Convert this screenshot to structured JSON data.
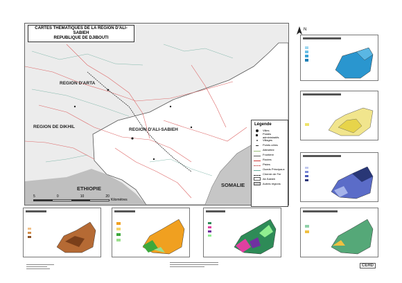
{
  "title": {
    "line1": "CARTES THEMATIQUES DE LA REGION D'ALI-SABIEH",
    "line2": "REPUBLIQUE DE DJIBOUTI"
  },
  "map_labels": {
    "arta": "REGION D'ARTA",
    "dikhil": "REGION DE DIKHIL",
    "ali_sabieh": "REGION D'ALI-SABIEH",
    "ethiopie": "ETHIOPIE",
    "somalie": "SOMALIE"
  },
  "legend": {
    "title": "Légende",
    "items": [
      "Villes",
      "Postes administratifs",
      "Villages",
      "Points côtes",
      "Altimétrie",
      "Frontière",
      "Routes",
      "Pistes",
      "Oueds Principaux",
      "Chemin de Fer",
      "Ali-Sabieh",
      "Autres régions"
    ]
  },
  "scale": {
    "ticks": [
      "5",
      "0",
      "10",
      "20"
    ],
    "unit": "Kilomètres"
  },
  "north": "N",
  "logo": "CERD"
}
